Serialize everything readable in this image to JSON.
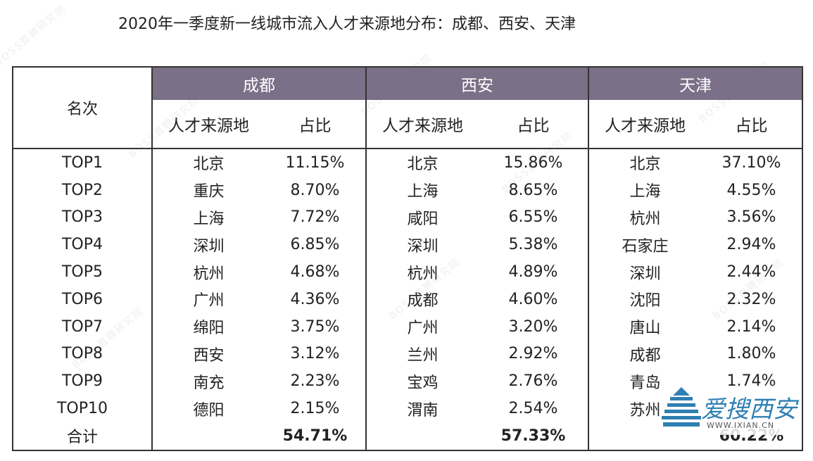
{
  "title": "2020年一季度新一线城市流入人才来源地分布：成都、西安、天津",
  "header": {
    "rank_label": "名次",
    "source_label": "人才来源地",
    "share_label": "占比"
  },
  "cities": [
    "成都",
    "西安",
    "天津"
  ],
  "rows": [
    {
      "rank": "TOP1",
      "cells": [
        [
          "北京",
          "11.15%"
        ],
        [
          "北京",
          "15.86%"
        ],
        [
          "北京",
          "37.10%"
        ]
      ]
    },
    {
      "rank": "TOP2",
      "cells": [
        [
          "重庆",
          "8.70%"
        ],
        [
          "上海",
          "8.65%"
        ],
        [
          "上海",
          "4.55%"
        ]
      ]
    },
    {
      "rank": "TOP3",
      "cells": [
        [
          "上海",
          "7.72%"
        ],
        [
          "咸阳",
          "6.55%"
        ],
        [
          "杭州",
          "3.56%"
        ]
      ]
    },
    {
      "rank": "TOP4",
      "cells": [
        [
          "深圳",
          "6.85%"
        ],
        [
          "深圳",
          "5.38%"
        ],
        [
          "石家庄",
          "2.94%"
        ]
      ]
    },
    {
      "rank": "TOP5",
      "cells": [
        [
          "杭州",
          "4.68%"
        ],
        [
          "杭州",
          "4.89%"
        ],
        [
          "深圳",
          "2.44%"
        ]
      ]
    },
    {
      "rank": "TOP6",
      "cells": [
        [
          "广州",
          "4.36%"
        ],
        [
          "成都",
          "4.60%"
        ],
        [
          "沈阳",
          "2.32%"
        ]
      ]
    },
    {
      "rank": "TOP7",
      "cells": [
        [
          "绵阳",
          "3.75%"
        ],
        [
          "广州",
          "3.20%"
        ],
        [
          "唐山",
          "2.14%"
        ]
      ]
    },
    {
      "rank": "TOP8",
      "cells": [
        [
          "西安",
          "3.12%"
        ],
        [
          "兰州",
          "2.92%"
        ],
        [
          "成都",
          "1.80%"
        ]
      ]
    },
    {
      "rank": "TOP9",
      "cells": [
        [
          "南充",
          "2.23%"
        ],
        [
          "宝鸡",
          "2.76%"
        ],
        [
          "青岛",
          "1.74%"
        ]
      ]
    },
    {
      "rank": "TOP10",
      "cells": [
        [
          "德阳",
          "2.15%"
        ],
        [
          "渭南",
          "2.54%"
        ],
        [
          "苏州",
          ""
        ]
      ]
    }
  ],
  "total": {
    "label": "合计",
    "values": [
      "54.71%",
      "57.33%",
      "60.22%"
    ]
  },
  "watermark": "BOSS直聘研究院",
  "logo": {
    "name": "爱搜西安",
    "url": "WWW.IXIAN.CN"
  },
  "colors": {
    "header_bg": "#7b7087",
    "header_text": "#ffffff",
    "border": "#333333",
    "logo": "#2f7fb3"
  }
}
